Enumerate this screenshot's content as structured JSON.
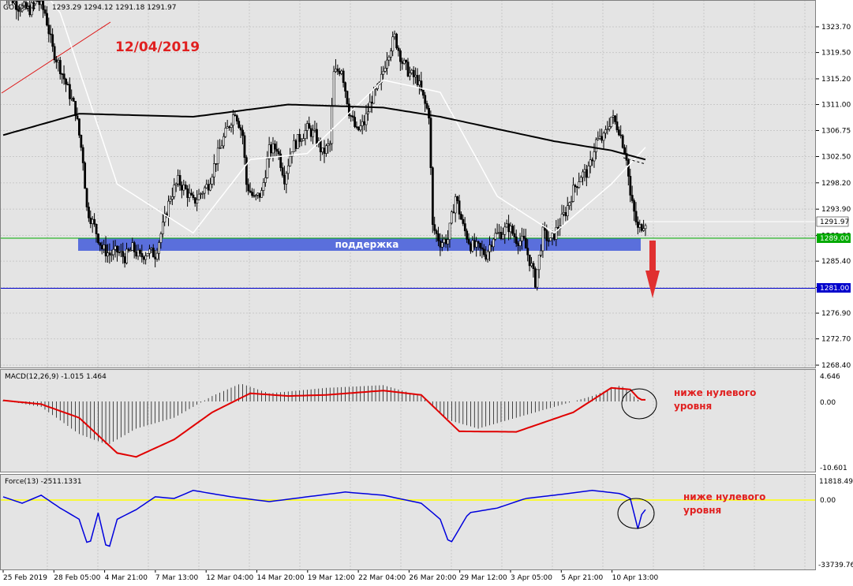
{
  "header": {
    "symbol": "GOLD,H4",
    "ohlc": "1293.29 1294.12 1291.18 1291.97"
  },
  "annotations": {
    "date": "12/04/2019",
    "support_label": "поддержка",
    "macd_note_line1": "ниже нулевого",
    "macd_note_line2": "уровня",
    "force_note_line1": "ниже нулевого",
    "force_note_line2": "уровня"
  },
  "price_axis": {
    "ticks": [
      "1323.70",
      "1319.50",
      "1315.20",
      "1311.00",
      "1306.75",
      "1302.50",
      "1298.20",
      "1293.90",
      "1289.60",
      "1285.40",
      "1281.10",
      "1276.90",
      "1272.70",
      "1268.40"
    ],
    "current_price": "1291.97",
    "support_level": "1289.00",
    "target_level": "1281.00"
  },
  "macd": {
    "label": "MACD(12,26,9) -1.015 1.464",
    "ticks": [
      "4.646",
      "0.00",
      "-10.601"
    ]
  },
  "force": {
    "label": "Force(13) -2511.1331",
    "ticks": [
      "11818.491",
      "0.00",
      "-33739.76"
    ]
  },
  "time_axis": [
    "25 Feb 2019",
    "28 Feb 05:00",
    "4 Mar 21:00",
    "7 Mar 13:00",
    "12 Mar 04:00",
    "14 Mar 20:00",
    "19 Mar 12:00",
    "22 Mar 04:00",
    "26 Mar 20:00",
    "29 Mar 12:00",
    "3 Apr 05:00",
    "5 Apr 21:00",
    "10 Apr 13:00"
  ],
  "colors": {
    "background": "#e4e4e4",
    "grid": "#c8c8c8",
    "candles": "#000000",
    "ma_fast": "#ffffff",
    "ma_slow": "#000000",
    "support_zone": "#5a6fdc",
    "date_text": "#e02020",
    "arrow": "#e03030",
    "macd_signal": "#e00000",
    "force_line": "#0000dd",
    "zero_line_force": "#ffff00",
    "support_line": "#00aa00",
    "target_line": "#0000cc"
  },
  "chart_data": {
    "type": "candlestick",
    "price_close_path": [
      [
        0,
        1330.0
      ],
      [
        8,
        1327.0
      ],
      [
        14,
        1326.5
      ],
      [
        18,
        1328.0
      ],
      [
        22,
        1326.0
      ],
      [
        26,
        1320.0
      ],
      [
        30,
        1317.0
      ],
      [
        34,
        1313.5
      ],
      [
        38,
        1310.0
      ],
      [
        42,
        1302.0
      ],
      [
        44,
        1294.0
      ],
      [
        48,
        1291.0
      ],
      [
        52,
        1287.5
      ],
      [
        56,
        1286.5
      ],
      [
        60,
        1287.0
      ],
      [
        64,
        1286.0
      ],
      [
        68,
        1287.5
      ],
      [
        72,
        1286.0
      ],
      [
        76,
        1287.0
      ],
      [
        80,
        1286.5
      ],
      [
        84,
        1291.0
      ],
      [
        88,
        1296.0
      ],
      [
        92,
        1298.5
      ],
      [
        96,
        1297.0
      ],
      [
        100,
        1295.0
      ],
      [
        104,
        1296.5
      ],
      [
        108,
        1298.0
      ],
      [
        112,
        1302.0
      ],
      [
        116,
        1305.5
      ],
      [
        120,
        1308.5
      ],
      [
        122,
        1310.0
      ],
      [
        126,
        1306.0
      ],
      [
        128,
        1298.0
      ],
      [
        132,
        1295.5
      ],
      [
        136,
        1296.5
      ],
      [
        140,
        1303.5
      ],
      [
        144,
        1304.0
      ],
      [
        148,
        1299.0
      ],
      [
        152,
        1304.0
      ],
      [
        156,
        1305.5
      ],
      [
        160,
        1307.0
      ],
      [
        164,
        1306.0
      ],
      [
        168,
        1303.0
      ],
      [
        172,
        1304.5
      ],
      [
        174,
        1316.0
      ],
      [
        178,
        1317.0
      ],
      [
        182,
        1310.0
      ],
      [
        186,
        1306.5
      ],
      [
        190,
        1308.0
      ],
      [
        194,
        1312.0
      ],
      [
        198,
        1314.0
      ],
      [
        202,
        1319.0
      ],
      [
        206,
        1322.0
      ],
      [
        210,
        1318.0
      ],
      [
        214,
        1316.0
      ],
      [
        218,
        1315.0
      ],
      [
        222,
        1311.0
      ],
      [
        224,
        1309.5
      ],
      [
        226,
        1291.0
      ],
      [
        230,
        1288.5
      ],
      [
        234,
        1289.0
      ],
      [
        238,
        1296.0
      ],
      [
        242,
        1291.0
      ],
      [
        246,
        1288.0
      ],
      [
        250,
        1287.5
      ],
      [
        254,
        1286.5
      ],
      [
        258,
        1289.5
      ],
      [
        262,
        1290.0
      ],
      [
        266,
        1291.0
      ],
      [
        270,
        1289.0
      ],
      [
        274,
        1288.5
      ],
      [
        278,
        1284.5
      ],
      [
        280,
        1282.0
      ],
      [
        284,
        1290.0
      ],
      [
        288,
        1288.5
      ],
      [
        292,
        1291.0
      ],
      [
        296,
        1293.5
      ],
      [
        300,
        1297.0
      ],
      [
        304,
        1299.5
      ],
      [
        308,
        1300.0
      ],
      [
        312,
        1305.0
      ],
      [
        316,
        1305.5
      ],
      [
        320,
        1309.0
      ],
      [
        324,
        1307.0
      ],
      [
        328,
        1302.5
      ],
      [
        330,
        1296.0
      ],
      [
        334,
        1290.5
      ],
      [
        338,
        1292.0
      ]
    ],
    "moving_average_200": [
      [
        0,
        1306
      ],
      [
        40,
        1309.5
      ],
      [
        100,
        1309
      ],
      [
        150,
        1311
      ],
      [
        200,
        1310.5
      ],
      [
        230,
        1309
      ],
      [
        260,
        1307
      ],
      [
        290,
        1305
      ],
      [
        320,
        1303.5
      ],
      [
        338,
        1302
      ]
    ],
    "moving_average_fast": [
      [
        0,
        1338
      ],
      [
        30,
        1326
      ],
      [
        60,
        1298
      ],
      [
        100,
        1290
      ],
      [
        130,
        1302
      ],
      [
        160,
        1303
      ],
      [
        200,
        1315
      ],
      [
        230,
        1313
      ],
      [
        260,
        1296
      ],
      [
        290,
        1290
      ],
      [
        320,
        1298
      ],
      [
        338,
        1304
      ]
    ],
    "support_zone": [
      1288.2,
      1289.6
    ],
    "support_level": 1289.0,
    "target_level": 1281.0,
    "macd_histogram_range": [
      -10.601,
      4.646
    ],
    "force_range": [
      -33739.76,
      11818.491
    ]
  }
}
